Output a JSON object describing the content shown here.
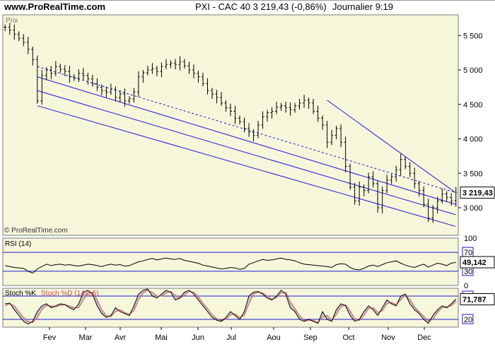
{
  "header": {
    "site": "www.ProRealTime.com",
    "instrument": "PXI - CAC 40    3 219,43 (-0,86%)",
    "period": "Journalier  9:19"
  },
  "colors": {
    "background": "#ffffff",
    "panel_bg": "#f6f6da",
    "price_line": "#000000",
    "channel": "#1a1ad6",
    "stoch_k": "#000000",
    "stoch_d": "#d25050"
  },
  "chart_data": [
    {
      "type": "bar",
      "subtype": "ohlc",
      "panel": "price",
      "panel_label": "Prix",
      "watermark": "© ProRealTime.com",
      "x_ticks": [
        "Fev",
        "Mar",
        "Avr",
        "Mai",
        "Jun",
        "Jul",
        "Aou",
        "Sep",
        "Oct",
        "Nov",
        "Dec"
      ],
      "y_ticks": [
        "5 500",
        "5 000",
        "4 500",
        "4 000",
        "3 500",
        "3 000"
      ],
      "ylim": [
        2600,
        5800
      ],
      "last_price_label": "3 219,43",
      "closes": [
        5620,
        5580,
        5520,
        5460,
        5400,
        5300,
        5150,
        4550,
        4920,
        5000,
        4950,
        5050,
        5010,
        4980,
        4900,
        4880,
        4950,
        4920,
        4870,
        4800,
        4750,
        4700,
        4680,
        4720,
        4600,
        4650,
        4550,
        4580,
        4680,
        4900,
        4960,
        5000,
        5020,
        4980,
        5050,
        5080,
        5100,
        5080,
        5120,
        5060,
        5000,
        4950,
        4900,
        4800,
        4700,
        4650,
        4600,
        4520,
        4450,
        4400,
        4300,
        4250,
        4150,
        4100,
        4050,
        4200,
        4320,
        4380,
        4400,
        4460,
        4480,
        4450,
        4420,
        4480,
        4520,
        4560,
        4520,
        4400,
        4300,
        4200,
        3950,
        4050,
        4150,
        3950,
        3600,
        3300,
        3100,
        3300,
        3250,
        3450,
        3350,
        3000,
        3250,
        3400,
        3450,
        3550,
        3700,
        3600,
        3500,
        3350,
        3250,
        3050,
        2850,
        3000,
        3100,
        3200,
        3150,
        3100,
        3220
      ],
      "channel_lines": [
        {
          "name": "upper-channel",
          "x": [
            "Jan",
            "Dec"
          ],
          "y": [
            5050,
            3220
          ],
          "style": "dashed"
        },
        {
          "name": "middle-channel-1",
          "x": [
            "Jan",
            "Dec"
          ],
          "y": [
            4900,
            3050
          ]
        },
        {
          "name": "middle-channel-2",
          "x": [
            "Jan",
            "Dec"
          ],
          "y": [
            4700,
            2900
          ]
        },
        {
          "name": "lower-channel",
          "x": [
            "Jan",
            "Dec"
          ],
          "y": [
            4480,
            2730
          ]
        },
        {
          "name": "resistance-line",
          "x": [
            "Sep",
            "Dec"
          ],
          "y": [
            4560,
            3220
          ]
        }
      ]
    },
    {
      "type": "line",
      "panel": "rsi",
      "panel_label": "RSI (14)",
      "y_ticks": [
        "100",
        "70",
        "30",
        "0"
      ],
      "levels": [
        70,
        30
      ],
      "last_value_label": "49,142",
      "values": [
        42,
        40,
        38,
        37,
        36,
        30,
        26,
        35,
        40,
        45,
        42,
        44,
        45,
        43,
        44,
        42,
        41,
        43,
        45,
        44,
        42,
        40,
        43,
        45,
        43,
        44,
        41,
        42,
        46,
        50,
        52,
        55,
        57,
        54,
        56,
        58,
        56,
        55,
        57,
        53,
        51,
        49,
        47,
        43,
        41,
        39,
        37,
        35,
        36,
        38,
        37,
        34,
        36,
        45,
        48,
        52,
        55,
        53,
        54,
        56,
        58,
        55,
        54,
        52,
        48,
        45,
        44,
        43,
        42,
        41,
        40,
        38,
        44,
        46,
        45,
        38,
        34,
        33,
        36,
        41,
        43,
        40,
        44,
        48,
        50,
        52,
        47,
        43,
        40,
        38,
        42,
        45,
        39,
        43,
        47,
        45,
        42,
        47,
        49
      ]
    },
    {
      "type": "line",
      "panel": "stochastic",
      "panel_label": "Stoch %K",
      "legend": [
        "Stoch %K",
        "Stoch %D (14,3,5)"
      ],
      "y_ticks": [
        "80",
        "20"
      ],
      "levels": [
        80,
        20
      ],
      "last_value_label": "71,787",
      "series": [
        {
          "name": "Stoch %K",
          "values": [
            60,
            62,
            45,
            30,
            15,
            8,
            15,
            40,
            55,
            60,
            50,
            55,
            60,
            58,
            50,
            45,
            60,
            90,
            95,
            85,
            55,
            35,
            25,
            30,
            50,
            40,
            35,
            30,
            55,
            85,
            95,
            98,
            80,
            75,
            85,
            95,
            90,
            70,
            75,
            90,
            95,
            85,
            70,
            55,
            40,
            25,
            18,
            15,
            25,
            40,
            30,
            20,
            40,
            80,
            90,
            92,
            85,
            75,
            70,
            80,
            95,
            85,
            50,
            40,
            20,
            15,
            20,
            15,
            10,
            40,
            20,
            15,
            45,
            60,
            55,
            30,
            15,
            20,
            40,
            55,
            45,
            30,
            50,
            70,
            60,
            55,
            80,
            85,
            60,
            45,
            35,
            20,
            10,
            30,
            45,
            55,
            50,
            60,
            72
          ]
        },
        {
          "name": "Stoch %D (14,3,5)",
          "values": [
            55,
            60,
            55,
            40,
            25,
            15,
            12,
            25,
            45,
            55,
            55,
            52,
            56,
            58,
            55,
            50,
            50,
            70,
            88,
            90,
            70,
            45,
            30,
            27,
            40,
            45,
            38,
            33,
            42,
            70,
            88,
            95,
            90,
            80,
            80,
            88,
            92,
            82,
            75,
            82,
            92,
            90,
            78,
            62,
            48,
            32,
            22,
            17,
            20,
            32,
            34,
            25,
            30,
            60,
            85,
            90,
            88,
            80,
            72,
            76,
            88,
            90,
            65,
            48,
            30,
            18,
            18,
            17,
            12,
            25,
            30,
            18,
            32,
            52,
            58,
            42,
            22,
            17,
            30,
            48,
            50,
            38,
            42,
            60,
            64,
            58,
            70,
            82,
            72,
            52,
            40,
            28,
            16,
            20,
            38,
            50,
            52,
            55,
            66
          ]
        }
      ]
    }
  ]
}
